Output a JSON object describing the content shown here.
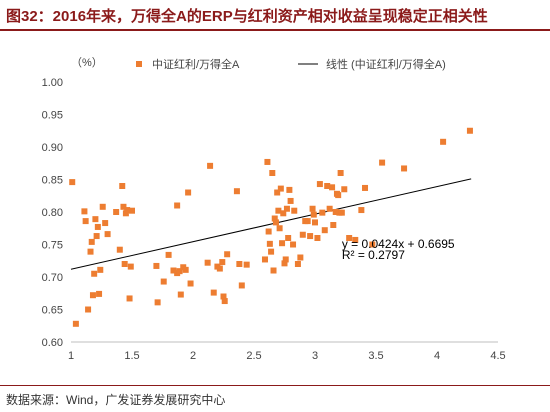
{
  "figure": {
    "title": "图32：2016年来，万得全A的ERP与红利资产相对收益呈现稳定正相关性",
    "source": "数据来源：Wind，广发证券发展研究中心"
  },
  "chart_data": {
    "type": "scatter",
    "title": "",
    "xlabel": "",
    "ylabel": "（%）",
    "xlim": [
      1,
      4.5
    ],
    "ylim": [
      0.6,
      1.0
    ],
    "x_ticks": [
      "1",
      "1.5",
      "2",
      "2.5",
      "3",
      "3.5",
      "4",
      "4.5"
    ],
    "y_ticks": [
      "0.60",
      "0.65",
      "0.70",
      "0.75",
      "0.80",
      "0.85",
      "0.90",
      "0.95",
      "1.00"
    ],
    "grid": false,
    "legend_position": "top",
    "series": [
      {
        "name": "中证红利/万得全A",
        "type": "scatter",
        "color": "#ed7d31",
        "marker": "square",
        "points": [
          [
            1.01,
            0.846
          ],
          [
            1.04,
            0.628
          ],
          [
            1.11,
            0.801
          ],
          [
            1.12,
            0.786
          ],
          [
            1.14,
            0.65
          ],
          [
            1.16,
            0.739
          ],
          [
            1.17,
            0.754
          ],
          [
            1.18,
            0.672
          ],
          [
            1.19,
            0.705
          ],
          [
            1.2,
            0.789
          ],
          [
            1.21,
            0.763
          ],
          [
            1.22,
            0.777
          ],
          [
            1.23,
            0.674
          ],
          [
            1.24,
            0.711
          ],
          [
            1.26,
            0.808
          ],
          [
            1.28,
            0.783
          ],
          [
            1.3,
            0.766
          ],
          [
            1.37,
            0.8
          ],
          [
            1.4,
            0.742
          ],
          [
            1.42,
            0.84
          ],
          [
            1.43,
            0.808
          ],
          [
            1.44,
            0.72
          ],
          [
            1.45,
            0.798
          ],
          [
            1.46,
            0.803
          ],
          [
            1.48,
            0.667
          ],
          [
            1.49,
            0.716
          ],
          [
            1.5,
            0.802
          ],
          [
            1.7,
            0.717
          ],
          [
            1.71,
            0.661
          ],
          [
            1.76,
            0.693
          ],
          [
            1.8,
            0.734
          ],
          [
            1.84,
            0.71
          ],
          [
            1.87,
            0.706
          ],
          [
            1.87,
            0.81
          ],
          [
            1.89,
            0.709
          ],
          [
            1.9,
            0.673
          ],
          [
            1.92,
            0.715
          ],
          [
            1.94,
            0.711
          ],
          [
            1.96,
            0.83
          ],
          [
            1.98,
            0.69
          ],
          [
            2.12,
            0.722
          ],
          [
            2.14,
            0.871
          ],
          [
            2.17,
            0.676
          ],
          [
            2.2,
            0.716
          ],
          [
            2.22,
            0.713
          ],
          [
            2.24,
            0.723
          ],
          [
            2.25,
            0.67
          ],
          [
            2.26,
            0.663
          ],
          [
            2.28,
            0.735
          ],
          [
            2.36,
            0.832
          ],
          [
            2.38,
            0.72
          ],
          [
            2.4,
            0.687
          ],
          [
            2.44,
            0.719
          ],
          [
            2.59,
            0.727
          ],
          [
            2.61,
            0.877
          ],
          [
            2.62,
            0.77
          ],
          [
            2.63,
            0.751
          ],
          [
            2.64,
            0.739
          ],
          [
            2.65,
            0.86
          ],
          [
            2.66,
            0.71
          ],
          [
            2.67,
            0.79
          ],
          [
            2.68,
            0.784
          ],
          [
            2.69,
            0.83
          ],
          [
            2.7,
            0.802
          ],
          [
            2.71,
            0.775
          ],
          [
            2.72,
            0.836
          ],
          [
            2.73,
            0.752
          ],
          [
            2.74,
            0.798
          ],
          [
            2.75,
            0.721
          ],
          [
            2.76,
            0.727
          ],
          [
            2.77,
            0.805
          ],
          [
            2.78,
            0.76
          ],
          [
            2.79,
            0.834
          ],
          [
            2.8,
            0.817
          ],
          [
            2.82,
            0.75
          ],
          [
            2.83,
            0.802
          ],
          [
            2.86,
            0.72
          ],
          [
            2.88,
            0.73
          ],
          [
            2.9,
            0.765
          ],
          [
            2.92,
            0.786
          ],
          [
            2.94,
            0.786
          ],
          [
            2.96,
            0.763
          ],
          [
            2.98,
            0.805
          ],
          [
            2.99,
            0.796
          ],
          [
            3.0,
            0.784
          ],
          [
            3.02,
            0.76
          ],
          [
            3.04,
            0.843
          ],
          [
            3.06,
            0.799
          ],
          [
            3.08,
            0.772
          ],
          [
            3.1,
            0.84
          ],
          [
            3.12,
            0.805
          ],
          [
            3.14,
            0.838
          ],
          [
            3.15,
            0.78
          ],
          [
            3.17,
            0.8
          ],
          [
            3.18,
            0.828
          ],
          [
            3.19,
            0.826
          ],
          [
            3.2,
            0.799
          ],
          [
            3.21,
            0.86
          ],
          [
            3.22,
            0.799
          ],
          [
            3.24,
            0.835
          ],
          [
            3.28,
            0.76
          ],
          [
            3.33,
            0.757
          ],
          [
            3.38,
            0.803
          ],
          [
            3.41,
            0.837
          ],
          [
            3.47,
            0.75
          ],
          [
            3.55,
            0.876
          ],
          [
            3.73,
            0.867
          ],
          [
            4.05,
            0.908
          ],
          [
            4.27,
            0.925
          ]
        ]
      },
      {
        "name": "线性 (中证红利/万得全A)",
        "type": "line",
        "color": "#000000",
        "range": [
          1.0,
          4.28
        ],
        "slope": 0.0424,
        "intercept": 0.6695
      }
    ],
    "annotations": [
      {
        "text": "y = 0.0424x + 0.6695",
        "x": 3.22,
        "y": 0.745
      },
      {
        "text": "R² = 0.2797",
        "x": 3.22,
        "y": 0.728
      }
    ]
  }
}
